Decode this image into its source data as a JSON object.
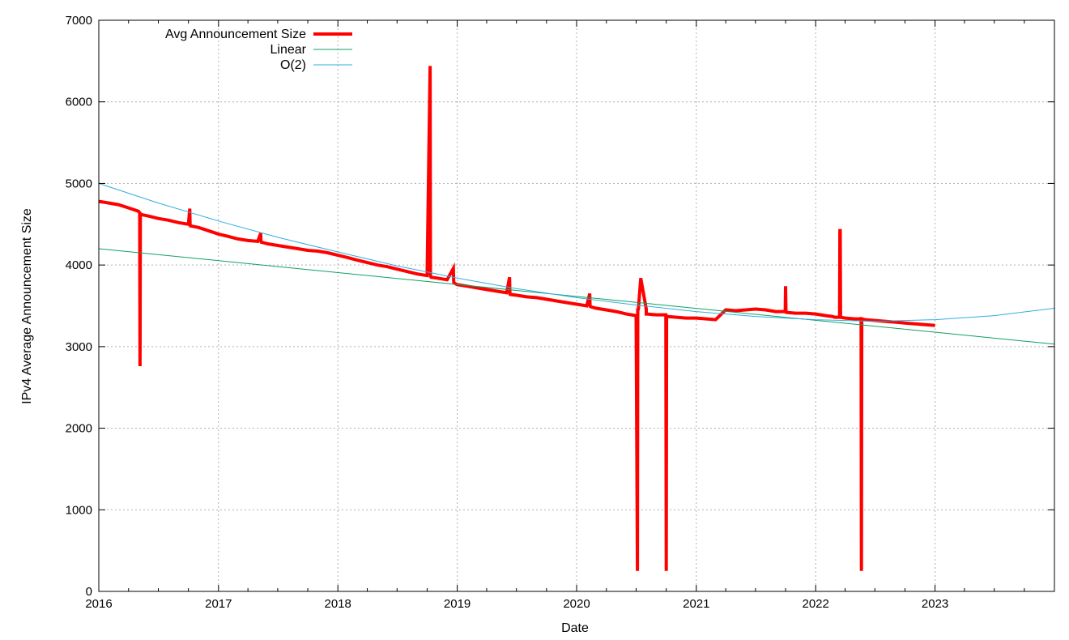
{
  "chart_data": {
    "type": "line",
    "title": "",
    "xlabel": "Date",
    "ylabel": "IPv4 Average Announcement Size",
    "xlim": [
      "2016-01-01",
      "2024-01-01"
    ],
    "ylim": [
      0,
      7000
    ],
    "grid": true,
    "legend_position": "top-left",
    "x_ticks": [
      "2016",
      "2017",
      "2018",
      "2019",
      "2020",
      "2021",
      "2022",
      "2023"
    ],
    "y_ticks": [
      "0",
      "1000",
      "2000",
      "3000",
      "4000",
      "5000",
      "6000",
      "7000"
    ],
    "series": [
      {
        "name": "Avg Announcement Size",
        "color": "#ff0000",
        "style": "thick",
        "x": [
          "2016-01-01",
          "2016-02-01",
          "2016-03-01",
          "2016-04-01",
          "2016-05-01",
          "2016-05-05",
          "2016-05-06",
          "2016-05-07",
          "2016-05-08",
          "2016-06-01",
          "2016-07-01",
          "2016-08-01",
          "2016-09-01",
          "2016-10-01",
          "2016-10-05",
          "2016-10-06",
          "2016-10-07",
          "2016-11-01",
          "2016-12-01",
          "2017-01-01",
          "2017-02-01",
          "2017-03-01",
          "2017-04-01",
          "2017-05-01",
          "2017-05-10",
          "2017-05-11",
          "2017-05-12",
          "2017-06-01",
          "2017-07-01",
          "2017-08-01",
          "2017-09-01",
          "2017-10-01",
          "2017-11-01",
          "2017-12-01",
          "2018-01-01",
          "2018-02-01",
          "2018-03-01",
          "2018-04-01",
          "2018-05-01",
          "2018-06-01",
          "2018-07-01",
          "2018-08-01",
          "2018-09-01",
          "2018-10-01",
          "2018-10-10",
          "2018-10-11",
          "2018-10-12",
          "2018-10-13",
          "2018-11-01",
          "2018-12-01",
          "2018-12-20",
          "2018-12-21",
          "2018-12-22",
          "2019-01-01",
          "2019-02-01",
          "2019-03-01",
          "2019-04-01",
          "2019-05-01",
          "2019-06-01",
          "2019-06-10",
          "2019-06-11",
          "2019-06-12",
          "2019-07-01",
          "2019-08-01",
          "2019-09-01",
          "2019-10-01",
          "2019-11-01",
          "2019-12-01",
          "2020-01-01",
          "2020-02-01",
          "2020-02-10",
          "2020-02-11",
          "2020-02-12",
          "2020-03-01",
          "2020-04-01",
          "2020-05-01",
          "2020-06-01",
          "2020-07-01",
          "2020-07-05",
          "2020-07-06",
          "2020-07-07",
          "2020-07-08",
          "2020-07-15",
          "2020-08-01",
          "2020-08-01",
          "2020-08-02",
          "2020-08-03",
          "2020-09-01",
          "2020-09-30",
          "2020-10-01",
          "2020-10-02",
          "2020-10-03",
          "2020-11-01",
          "2020-12-01",
          "2021-01-01",
          "2021-02-01",
          "2021-03-01",
          "2021-04-01",
          "2021-05-01",
          "2021-06-01",
          "2021-07-01",
          "2021-08-01",
          "2021-09-01",
          "2021-09-30",
          "2021-10-01",
          "2021-10-02",
          "2021-10-03",
          "2021-11-01",
          "2021-12-01",
          "2022-01-01",
          "2022-02-01",
          "2022-02-20",
          "2022-03-01",
          "2022-03-15",
          "2022-03-16",
          "2022-03-17",
          "2022-03-18",
          "2022-04-01",
          "2022-05-01",
          "2022-05-20",
          "2022-05-21",
          "2022-05-22",
          "2022-06-01",
          "2022-07-01",
          "2022-08-01",
          "2022-09-01",
          "2022-10-01",
          "2022-11-01",
          "2022-12-01",
          "2023-01-01"
        ],
        "y": [
          4780,
          4760,
          4740,
          4700,
          4660,
          4640,
          2760,
          4640,
          4620,
          4600,
          4570,
          4550,
          4520,
          4500,
          4690,
          4500,
          4480,
          4460,
          4420,
          4380,
          4350,
          4320,
          4300,
          4290,
          4390,
          4290,
          4280,
          4260,
          4240,
          4220,
          4200,
          4180,
          4170,
          4150,
          4120,
          4090,
          4060,
          4030,
          4000,
          3980,
          3950,
          3920,
          3890,
          3870,
          6440,
          3870,
          3860,
          3850,
          3840,
          3820,
          3960,
          3800,
          3780,
          3760,
          3740,
          3720,
          3700,
          3680,
          3660,
          3850,
          3660,
          3640,
          3630,
          3610,
          3600,
          3580,
          3560,
          3540,
          3520,
          3500,
          3650,
          3500,
          3490,
          3470,
          3450,
          3430,
          3400,
          3380,
          250,
          3470,
          3450,
          3460,
          3840,
          3460,
          3400,
          3400,
          3400,
          3390,
          3390,
          250,
          3380,
          3370,
          3360,
          3350,
          3350,
          3340,
          3330,
          3450,
          3440,
          3450,
          3460,
          3450,
          3430,
          3430,
          3740,
          3430,
          3420,
          3410,
          3410,
          3400,
          3380,
          3370,
          3360,
          3360,
          4420,
          4420,
          3360,
          3350,
          3340,
          3340,
          250,
          3340,
          3330,
          3320,
          3310,
          3300,
          3290,
          3280,
          3270,
          3260
        ]
      },
      {
        "name": "Linear",
        "color": "#10a060",
        "style": "thin",
        "x": [
          "2016-01-01",
          "2024-01-01"
        ],
        "y": [
          4200,
          3030
        ]
      },
      {
        "name": "O(2)",
        "color": "#30aee0",
        "style": "thin",
        "x": [
          "2016-01-01",
          "2016-07-01",
          "2017-01-01",
          "2017-07-01",
          "2018-01-01",
          "2018-07-01",
          "2019-01-01",
          "2019-07-01",
          "2020-01-01",
          "2020-07-01",
          "2021-01-01",
          "2021-07-01",
          "2022-01-01",
          "2022-07-01",
          "2023-01-01",
          "2023-07-01",
          "2024-01-01"
        ],
        "y": [
          5000,
          4760,
          4540,
          4340,
          4160,
          3990,
          3840,
          3710,
          3600,
          3510,
          3430,
          3370,
          3330,
          3310,
          3330,
          3380,
          3470
        ]
      }
    ]
  }
}
